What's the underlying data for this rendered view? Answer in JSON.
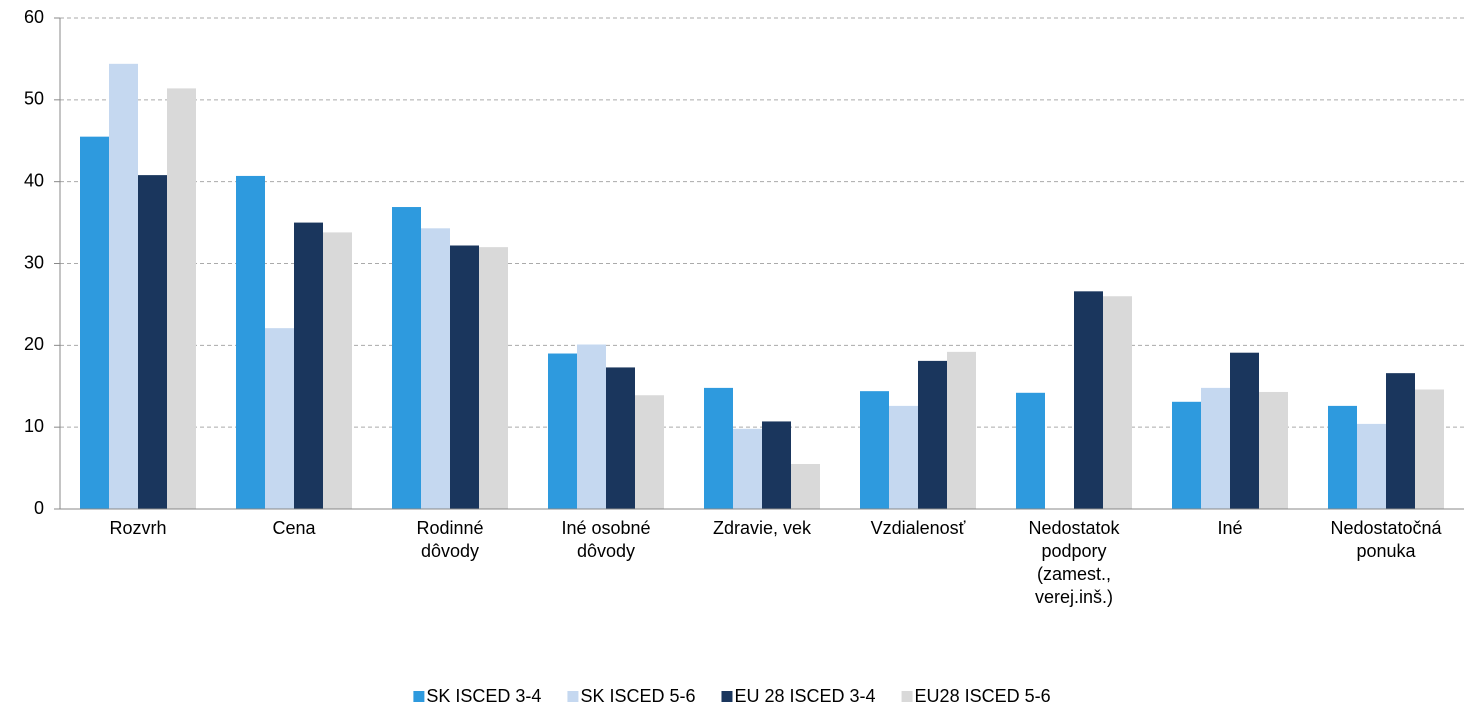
{
  "chart_data": {
    "type": "bar",
    "categories": [
      "Rozvrh",
      "Cena",
      "Rodinné dôvody",
      "Iné osobné dôvody",
      "Zdravie, vek",
      "Vzdialenosť",
      "Nedostatok podpory (zamest., verej.inš.)",
      "Iné",
      "Nedostatočná ponuka"
    ],
    "series": [
      {
        "name": "SK ISCED 3-4",
        "color": "#2e9ade",
        "values": [
          45.5,
          40.7,
          36.9,
          19.0,
          14.8,
          14.4,
          14.2,
          13.1,
          12.6
        ]
      },
      {
        "name": "SK ISCED 5-6",
        "color": "#c5d8f0",
        "values": [
          54.4,
          22.1,
          34.3,
          20.1,
          9.8,
          12.6,
          null,
          14.8,
          10.4
        ]
      },
      {
        "name": "EU 28 ISCED 3-4",
        "color": "#1a365d",
        "values": [
          40.8,
          35.0,
          32.2,
          17.3,
          10.7,
          18.1,
          26.6,
          19.1,
          16.6
        ]
      },
      {
        "name": "EU28 ISCED 5-6",
        "color": "#d9d9d9",
        "values": [
          51.4,
          33.8,
          32.0,
          13.9,
          5.5,
          19.2,
          26.0,
          14.3,
          14.6
        ]
      }
    ],
    "ylim": [
      0,
      60
    ],
    "yticks": [
      0,
      10,
      20,
      30,
      40,
      50,
      60
    ],
    "grid": true,
    "legend": "bottom"
  }
}
